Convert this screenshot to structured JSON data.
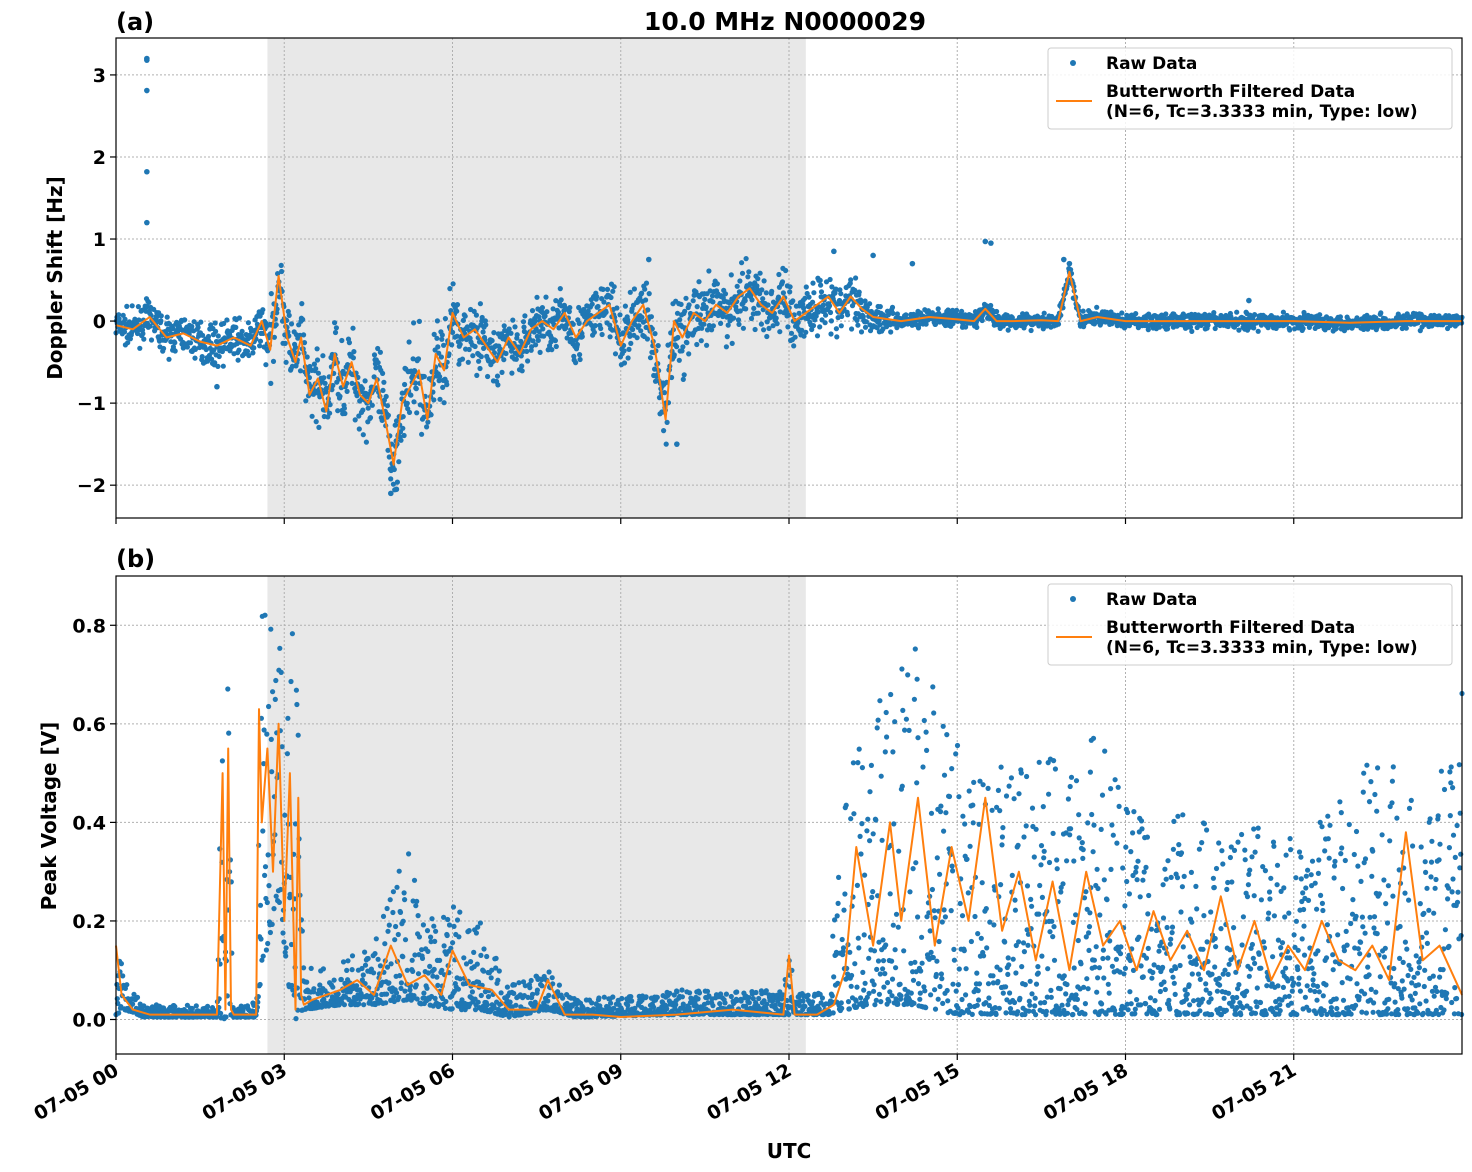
{
  "figure": {
    "title": "10.0 MHz N0000029",
    "xlabel": "UTC"
  },
  "colors": {
    "raw": "#1f77b4",
    "filtered": "#ff7f0e",
    "shade": "#e8e8e8",
    "grid": "#b0b0b0"
  },
  "legend": {
    "raw_label": "Raw Data",
    "filtered_label_line1": "Butterworth Filtered Data",
    "filtered_label_line2": "(N=6, Tc=3.3333 min, Type: low)",
    "placement": "top-right"
  },
  "chart_data": [
    {
      "panel": "(a)",
      "type": "scatter",
      "title": "10.0 MHz N0000029",
      "ylabel": "Doppler Shift [Hz]",
      "xlabel": "UTC",
      "xlim": [
        0,
        24
      ],
      "ylim": [
        -2.4,
        3.45
      ],
      "yticks": [
        -2,
        -1,
        0,
        1,
        2,
        3
      ],
      "ytick_labels": [
        "−2",
        "−1",
        "0",
        "1",
        "2",
        "3"
      ],
      "grid": true,
      "shaded_interval_hours": [
        2.7,
        12.3
      ],
      "series": [
        {
          "name": "Raw Data",
          "kind": "points",
          "color": "#1f77b4",
          "spread": [
            [
              0,
              0.15
            ],
            [
              2.6,
              0.2
            ],
            [
              2.8,
              0.35
            ],
            [
              3.5,
              0.35
            ],
            [
              5.5,
              0.4
            ],
            [
              7,
              0.25
            ],
            [
              9,
              0.3
            ],
            [
              10,
              0.35
            ],
            [
              11.5,
              0.3
            ],
            [
              12.5,
              0.3
            ],
            [
              13.3,
              0.2
            ],
            [
              14,
              0.08
            ],
            [
              24,
              0.07
            ]
          ],
          "outliers": [
            [
              0.55,
              3.2
            ],
            [
              0.55,
              3.18
            ],
            [
              0.55,
              2.81
            ],
            [
              0.55,
              1.82
            ],
            [
              0.55,
              1.2
            ],
            [
              1.8,
              -0.8
            ],
            [
              4.9,
              -2.1
            ],
            [
              5.0,
              -2.05
            ],
            [
              9.5,
              0.75
            ],
            [
              10,
              -1.5
            ],
            [
              12.8,
              0.85
            ],
            [
              13.5,
              0.8
            ],
            [
              14.2,
              0.7
            ],
            [
              15.5,
              0.97
            ],
            [
              15.6,
              0.95
            ],
            [
              16.9,
              0.75
            ],
            [
              17.0,
              0.7
            ],
            [
              20.2,
              0.25
            ]
          ]
        },
        {
          "name": "Butterworth Filtered Data (N=6, Tc=3.3333 min, Type: low)",
          "kind": "line",
          "color": "#ff7f0e",
          "x": [
            0,
            0.3,
            0.6,
            0.9,
            1.2,
            1.5,
            1.8,
            2.1,
            2.4,
            2.6,
            2.75,
            2.9,
            3.05,
            3.2,
            3.3,
            3.45,
            3.6,
            3.75,
            3.9,
            4.05,
            4.2,
            4.35,
            4.5,
            4.65,
            4.8,
            4.95,
            5.1,
            5.25,
            5.4,
            5.55,
            5.7,
            5.85,
            6.0,
            6.2,
            6.4,
            6.6,
            6.8,
            7.0,
            7.2,
            7.4,
            7.6,
            7.8,
            8.0,
            8.2,
            8.4,
            8.6,
            8.8,
            9.0,
            9.2,
            9.4,
            9.6,
            9.8,
            9.95,
            10.1,
            10.3,
            10.5,
            10.7,
            10.9,
            11.1,
            11.3,
            11.5,
            11.7,
            11.9,
            12.1,
            12.3,
            12.5,
            12.7,
            12.9,
            13.1,
            13.3,
            13.5,
            14.0,
            14.5,
            15.0,
            15.3,
            15.5,
            15.7,
            16.0,
            16.5,
            16.8,
            17.0,
            17.2,
            17.5,
            18,
            19,
            20,
            21,
            22,
            23,
            24
          ],
          "y": [
            -0.05,
            -0.1,
            0.05,
            -0.2,
            -0.15,
            -0.25,
            -0.3,
            -0.2,
            -0.3,
            0.0,
            -0.35,
            0.55,
            -0.2,
            -0.5,
            -0.2,
            -0.9,
            -0.7,
            -1.1,
            -0.4,
            -0.8,
            -0.5,
            -0.9,
            -1.0,
            -0.7,
            -1.2,
            -1.75,
            -1.0,
            -0.8,
            -0.6,
            -1.2,
            -0.4,
            -0.6,
            0.1,
            -0.2,
            -0.1,
            -0.3,
            -0.5,
            -0.2,
            -0.4,
            -0.1,
            0.0,
            -0.1,
            0.1,
            -0.2,
            0.0,
            0.1,
            0.2,
            -0.3,
            0.0,
            0.2,
            -0.3,
            -1.2,
            0.0,
            -0.2,
            0.1,
            0.0,
            0.2,
            0.1,
            0.3,
            0.4,
            0.2,
            0.1,
            0.3,
            0.0,
            0.1,
            0.2,
            0.3,
            0.1,
            0.3,
            0.15,
            0.05,
            0.0,
            0.05,
            0.02,
            0.0,
            0.15,
            0.0,
            0.0,
            0.01,
            0.0,
            0.6,
            0.0,
            0.05,
            0.0,
            0.0,
            0.0,
            0.0,
            -0.02,
            0.0,
            0.0
          ]
        }
      ]
    },
    {
      "panel": "(b)",
      "type": "scatter",
      "ylabel": "Peak Voltage [V]",
      "xlabel": "UTC",
      "xlim": [
        0,
        24
      ],
      "ylim": [
        -0.07,
        0.9
      ],
      "yticks": [
        0.0,
        0.2,
        0.4,
        0.6,
        0.8
      ],
      "ytick_labels": [
        "0.0",
        "0.2",
        "0.4",
        "0.6",
        "0.8"
      ],
      "xtick_hours": [
        0,
        3,
        6,
        9,
        12,
        15,
        18,
        21
      ],
      "xtick_labels": [
        "07-05 00",
        "07-05 03",
        "07-05 06",
        "07-05 09",
        "07-05 12",
        "07-05 15",
        "07-05 18",
        "07-05 21"
      ],
      "grid": true,
      "shaded_interval_hours": [
        2.7,
        12.3
      ],
      "series": [
        {
          "name": "Raw Data",
          "kind": "points",
          "color": "#1f77b4",
          "envelope": [
            [
              0,
              0.01,
              0.22
            ],
            [
              0.15,
              0.02,
              0.08
            ],
            [
              0.5,
              0.005,
              0.03
            ],
            [
              1.8,
              0.005,
              0.03
            ],
            [
              1.85,
              0.0,
              0.62
            ],
            [
              2.0,
              0.0,
              0.75
            ],
            [
              2.1,
              0.005,
              0.03
            ],
            [
              2.5,
              0.005,
              0.04
            ],
            [
              2.6,
              0.1,
              0.83
            ],
            [
              2.9,
              0.25,
              0.85
            ],
            [
              3.1,
              0.05,
              0.85
            ],
            [
              3.2,
              0.0,
              0.84
            ],
            [
              3.35,
              0.02,
              0.1
            ],
            [
              4.0,
              0.03,
              0.12
            ],
            [
              4.6,
              0.03,
              0.15
            ],
            [
              5.2,
              0.04,
              0.38
            ],
            [
              5.5,
              0.03,
              0.2
            ],
            [
              6.0,
              0.02,
              0.24
            ],
            [
              6.5,
              0.02,
              0.2
            ],
            [
              7.0,
              0.005,
              0.07
            ],
            [
              7.7,
              0.02,
              0.1
            ],
            [
              8.2,
              0.005,
              0.04
            ],
            [
              10,
              0.01,
              0.06
            ],
            [
              11.9,
              0.01,
              0.06
            ],
            [
              12.0,
              0.01,
              0.17
            ],
            [
              12.1,
              0.01,
              0.05
            ],
            [
              12.7,
              0.01,
              0.07
            ],
            [
              13.0,
              0.02,
              0.45
            ],
            [
              13.5,
              0.03,
              0.7
            ],
            [
              14.2,
              0.03,
              0.78
            ],
            [
              15.0,
              0.01,
              0.6
            ],
            [
              16.0,
              0.01,
              0.5
            ],
            [
              17.0,
              0.01,
              0.55
            ],
            [
              17.5,
              0.01,
              0.62
            ],
            [
              18.0,
              0.01,
              0.45
            ],
            [
              19.5,
              0.01,
              0.4
            ],
            [
              21,
              0.01,
              0.38
            ],
            [
              22.5,
              0.01,
              0.55
            ],
            [
              23.5,
              0.01,
              0.42
            ],
            [
              24,
              0.01,
              0.74
            ]
          ]
        },
        {
          "name": "Butterworth Filtered Data (N=6, Tc=3.3333 min, Type: low)",
          "kind": "line",
          "color": "#ff7f0e",
          "x": [
            0,
            0.1,
            0.3,
            0.6,
            1.0,
            1.5,
            1.8,
            1.9,
            1.95,
            2.0,
            2.05,
            2.1,
            2.5,
            2.55,
            2.6,
            2.7,
            2.8,
            2.9,
            3.0,
            3.1,
            3.2,
            3.25,
            3.3,
            3.35,
            3.5,
            4.0,
            4.3,
            4.6,
            4.9,
            5.2,
            5.5,
            5.8,
            6.0,
            6.3,
            6.7,
            7.0,
            7.5,
            7.7,
            8.0,
            8.5,
            9.0,
            10.0,
            11.0,
            11.9,
            12.0,
            12.1,
            12.5,
            12.8,
            13.0,
            13.2,
            13.5,
            13.8,
            14.0,
            14.3,
            14.6,
            14.9,
            15.2,
            15.5,
            15.8,
            16.1,
            16.4,
            16.7,
            17.0,
            17.3,
            17.6,
            17.9,
            18.2,
            18.5,
            18.8,
            19.1,
            19.4,
            19.7,
            20.0,
            20.3,
            20.6,
            20.9,
            21.2,
            21.5,
            21.8,
            22.1,
            22.4,
            22.7,
            23.0,
            23.3,
            23.6,
            24.0
          ],
          "y": [
            0.15,
            0.05,
            0.02,
            0.01,
            0.01,
            0.01,
            0.01,
            0.5,
            0.02,
            0.55,
            0.02,
            0.01,
            0.01,
            0.63,
            0.4,
            0.55,
            0.3,
            0.6,
            0.2,
            0.5,
            0.02,
            0.45,
            0.05,
            0.03,
            0.04,
            0.06,
            0.08,
            0.05,
            0.15,
            0.07,
            0.09,
            0.05,
            0.14,
            0.07,
            0.06,
            0.02,
            0.02,
            0.08,
            0.01,
            0.01,
            0.005,
            0.01,
            0.02,
            0.01,
            0.13,
            0.01,
            0.01,
            0.03,
            0.1,
            0.35,
            0.15,
            0.4,
            0.2,
            0.45,
            0.15,
            0.35,
            0.2,
            0.45,
            0.18,
            0.3,
            0.12,
            0.28,
            0.1,
            0.3,
            0.15,
            0.2,
            0.1,
            0.22,
            0.12,
            0.18,
            0.1,
            0.25,
            0.1,
            0.2,
            0.08,
            0.15,
            0.1,
            0.2,
            0.12,
            0.1,
            0.15,
            0.08,
            0.38,
            0.12,
            0.15,
            0.05
          ]
        }
      ]
    }
  ]
}
